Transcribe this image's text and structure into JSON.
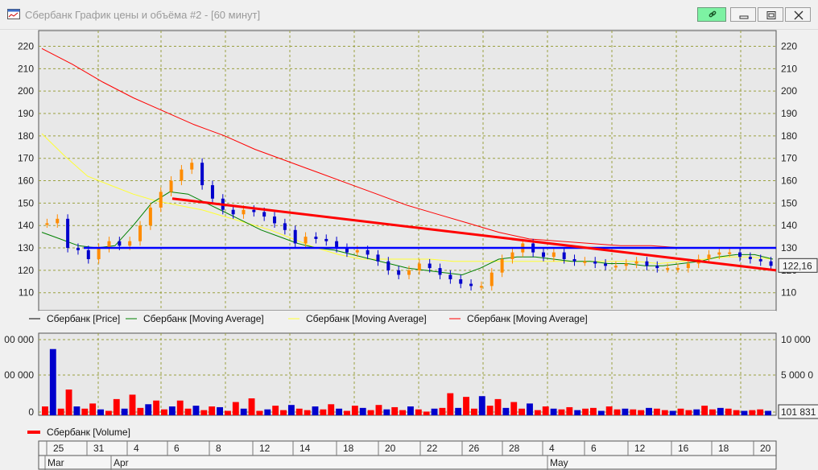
{
  "window": {
    "title": "Сбербанк График цены и объёма #2 - [60 минут]",
    "icons": [
      "chart-window-icon",
      "link-icon",
      "minimize-icon",
      "restore-icon",
      "close-icon"
    ]
  },
  "colors": {
    "price_up": "#ff8c00",
    "price_down": "#0000cc",
    "ma_green": "#008000",
    "ma_yellow": "#ffff33",
    "ma_red": "#ff0000",
    "trend_red": "#ff0000",
    "level_blue": "#0000ff",
    "volume_up": "#ff0000",
    "volume_down": "#0000cc",
    "grid": "#9aa040",
    "background": "#e8e8e8"
  },
  "chart_data": [
    {
      "type": "line",
      "y_ticks": [
        "110",
        "120",
        "130",
        "140",
        "150",
        "160",
        "170",
        "180",
        "190",
        "200",
        "210",
        "220"
      ],
      "ylim": [
        102,
        227
      ],
      "grid": true,
      "legend_position": "bottom",
      "series": [
        {
          "name": "Сбербанк [Price]",
          "kind": "candlestick",
          "y": [
            141,
            143,
            130,
            129,
            125,
            130,
            133,
            131,
            133,
            140,
            148,
            155,
            160,
            165,
            168,
            158,
            152,
            147,
            145,
            147,
            146,
            144,
            141,
            138,
            132,
            135,
            134,
            133,
            130,
            128,
            129,
            127,
            124,
            120,
            118,
            120,
            123,
            121,
            118,
            116,
            114,
            113,
            113,
            119,
            125,
            128,
            132,
            128,
            126,
            128,
            125,
            124,
            124,
            123,
            122,
            122,
            123,
            124,
            122,
            121,
            121,
            121,
            123,
            125,
            127,
            128,
            128,
            126,
            125,
            124,
            122
          ]
        },
        {
          "name": "Сбербанк [Moving Average]",
          "kind": "moving-average",
          "y": [
            137,
            134,
            131,
            130,
            131,
            140,
            150,
            155,
            154,
            150,
            146,
            142,
            138,
            135,
            132,
            130,
            129,
            127,
            125,
            123,
            121,
            120,
            119,
            118,
            121,
            125,
            126,
            126,
            125,
            124,
            124,
            123,
            123,
            122,
            122,
            123,
            124,
            126,
            127,
            127,
            125
          ]
        },
        {
          "name": "Сбербанк [Moving Average]",
          "kind": "moving-average",
          "y": [
            181,
            171,
            162,
            158,
            154,
            151,
            149,
            147,
            144,
            141,
            138,
            134,
            130,
            127,
            125,
            125,
            125,
            125,
            124,
            124,
            124,
            124,
            124,
            124,
            124,
            124,
            124,
            123,
            124,
            125,
            126,
            126,
            125
          ]
        },
        {
          "name": "Сбербанк [Moving Average]",
          "kind": "moving-average",
          "y": [
            219,
            212,
            204,
            197,
            191,
            185,
            180,
            174,
            169,
            164,
            159,
            154,
            149,
            145,
            141,
            137,
            134,
            133,
            132,
            131,
            131,
            130,
            130,
            130,
            130
          ]
        },
        {
          "name": "",
          "kind": "trendline",
          "y": [
            152,
            120
          ]
        },
        {
          "name": "",
          "kind": "horizontal-level",
          "y": [
            130,
            130
          ]
        }
      ],
      "last_price_label": "122,16"
    },
    {
      "type": "bar",
      "left_ticks": [
        "00 000",
        "00 000",
        "0"
      ],
      "right_ticks": [
        "10 000",
        "5 000 0",
        "0"
      ],
      "ylim": [
        0,
        10500
      ],
      "series": [
        {
          "name": "Сбербанк [Volume]",
          "values": [
            1200,
            9000,
            900,
            3500,
            1200,
            900,
            1600,
            800,
            600,
            2200,
            900,
            2800,
            1000,
            1500,
            2000,
            800,
            1200,
            2000,
            900,
            1300,
            700,
            1200,
            1100,
            600,
            1800,
            900,
            2300,
            600,
            800,
            1300,
            700,
            1400,
            900,
            700,
            1200,
            800,
            1500,
            900,
            600,
            1300,
            1000,
            700,
            1400,
            800,
            1100,
            700,
            1200,
            800,
            500,
            900,
            1000,
            3000,
            1000,
            2500,
            900,
            2600,
            1300,
            2200,
            1000,
            1800,
            900,
            1600,
            700,
            1200,
            900,
            800,
            1100,
            700,
            900,
            1000,
            600,
            1200,
            800,
            900,
            800,
            700,
            1000,
            900,
            700,
            600,
            900,
            700,
            800,
            1300,
            800,
            1000,
            900,
            700,
            600,
            700,
            800,
            600
          ]
        }
      ],
      "last_value_label": "101 831"
    }
  ],
  "time_axis": {
    "day_ticks": [
      "25",
      "31",
      "4",
      "6",
      "8",
      "12",
      "14",
      "18",
      "20",
      "22",
      "26",
      "28",
      "4",
      "6",
      "12",
      "16",
      "18",
      "20"
    ],
    "month_labels": [
      "Mar",
      "Apr",
      "May"
    ]
  }
}
